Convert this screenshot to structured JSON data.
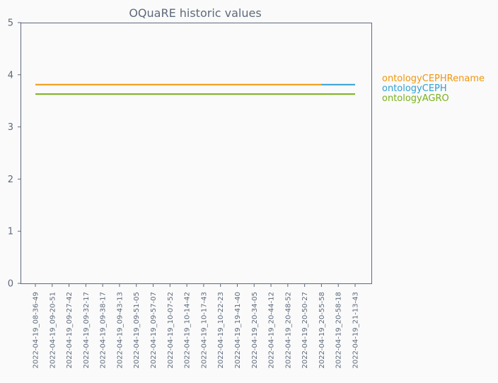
{
  "chart_data": {
    "type": "line",
    "title": "OQuaRE historic values",
    "xlabel": "",
    "ylabel": "",
    "ylim": [
      0,
      5
    ],
    "yticks": [
      0,
      1,
      2,
      3,
      4,
      5
    ],
    "grid": false,
    "legend_position": "right",
    "categories": [
      "2022-04-19_08-36-49",
      "2022-04-19_09-20-51",
      "2022-04-19_09-27-42",
      "2022-04-19_09-32-17",
      "2022-04-19_09-38-17",
      "2022-04-19_09-43-13",
      "2022-04-19_09-51-05",
      "2022-04-19_09-57-07",
      "2022-04-19_10-07-52",
      "2022-04-19_10-14-42",
      "2022-04-19_10-17-43",
      "2022-04-19_10-22-23",
      "2022-04-19_19-41-40",
      "2022-04-19_20-34-05",
      "2022-04-19_20-44-12",
      "2022-04-19_20-48-52",
      "2022-04-19_20-50-27",
      "2022-04-19_20-55-58",
      "2022-04-19_20-58-18",
      "2022-04-19_21-13-43"
    ],
    "series": [
      {
        "name": "ontologyCEPHRename",
        "color": "#f0960f",
        "values": [
          3.81,
          3.81,
          3.81,
          3.81,
          3.81,
          3.81,
          3.81,
          3.81,
          3.81,
          3.81,
          3.81,
          3.81,
          3.81,
          3.81,
          3.81,
          3.81,
          3.81,
          3.81,
          null,
          null
        ]
      },
      {
        "name": "ontologyCEPH",
        "color": "#2e9fd2",
        "values": [
          null,
          null,
          null,
          null,
          null,
          null,
          null,
          null,
          null,
          null,
          null,
          null,
          null,
          null,
          null,
          null,
          null,
          3.81,
          3.81,
          3.81
        ]
      },
      {
        "name": "ontologyAGRO",
        "color": "#7ab11c",
        "values": [
          3.63,
          3.63,
          3.63,
          3.63,
          3.63,
          3.63,
          3.63,
          3.63,
          3.63,
          3.63,
          3.63,
          3.63,
          3.63,
          3.63,
          3.63,
          3.63,
          3.63,
          3.63,
          3.63,
          3.63
        ]
      }
    ]
  }
}
